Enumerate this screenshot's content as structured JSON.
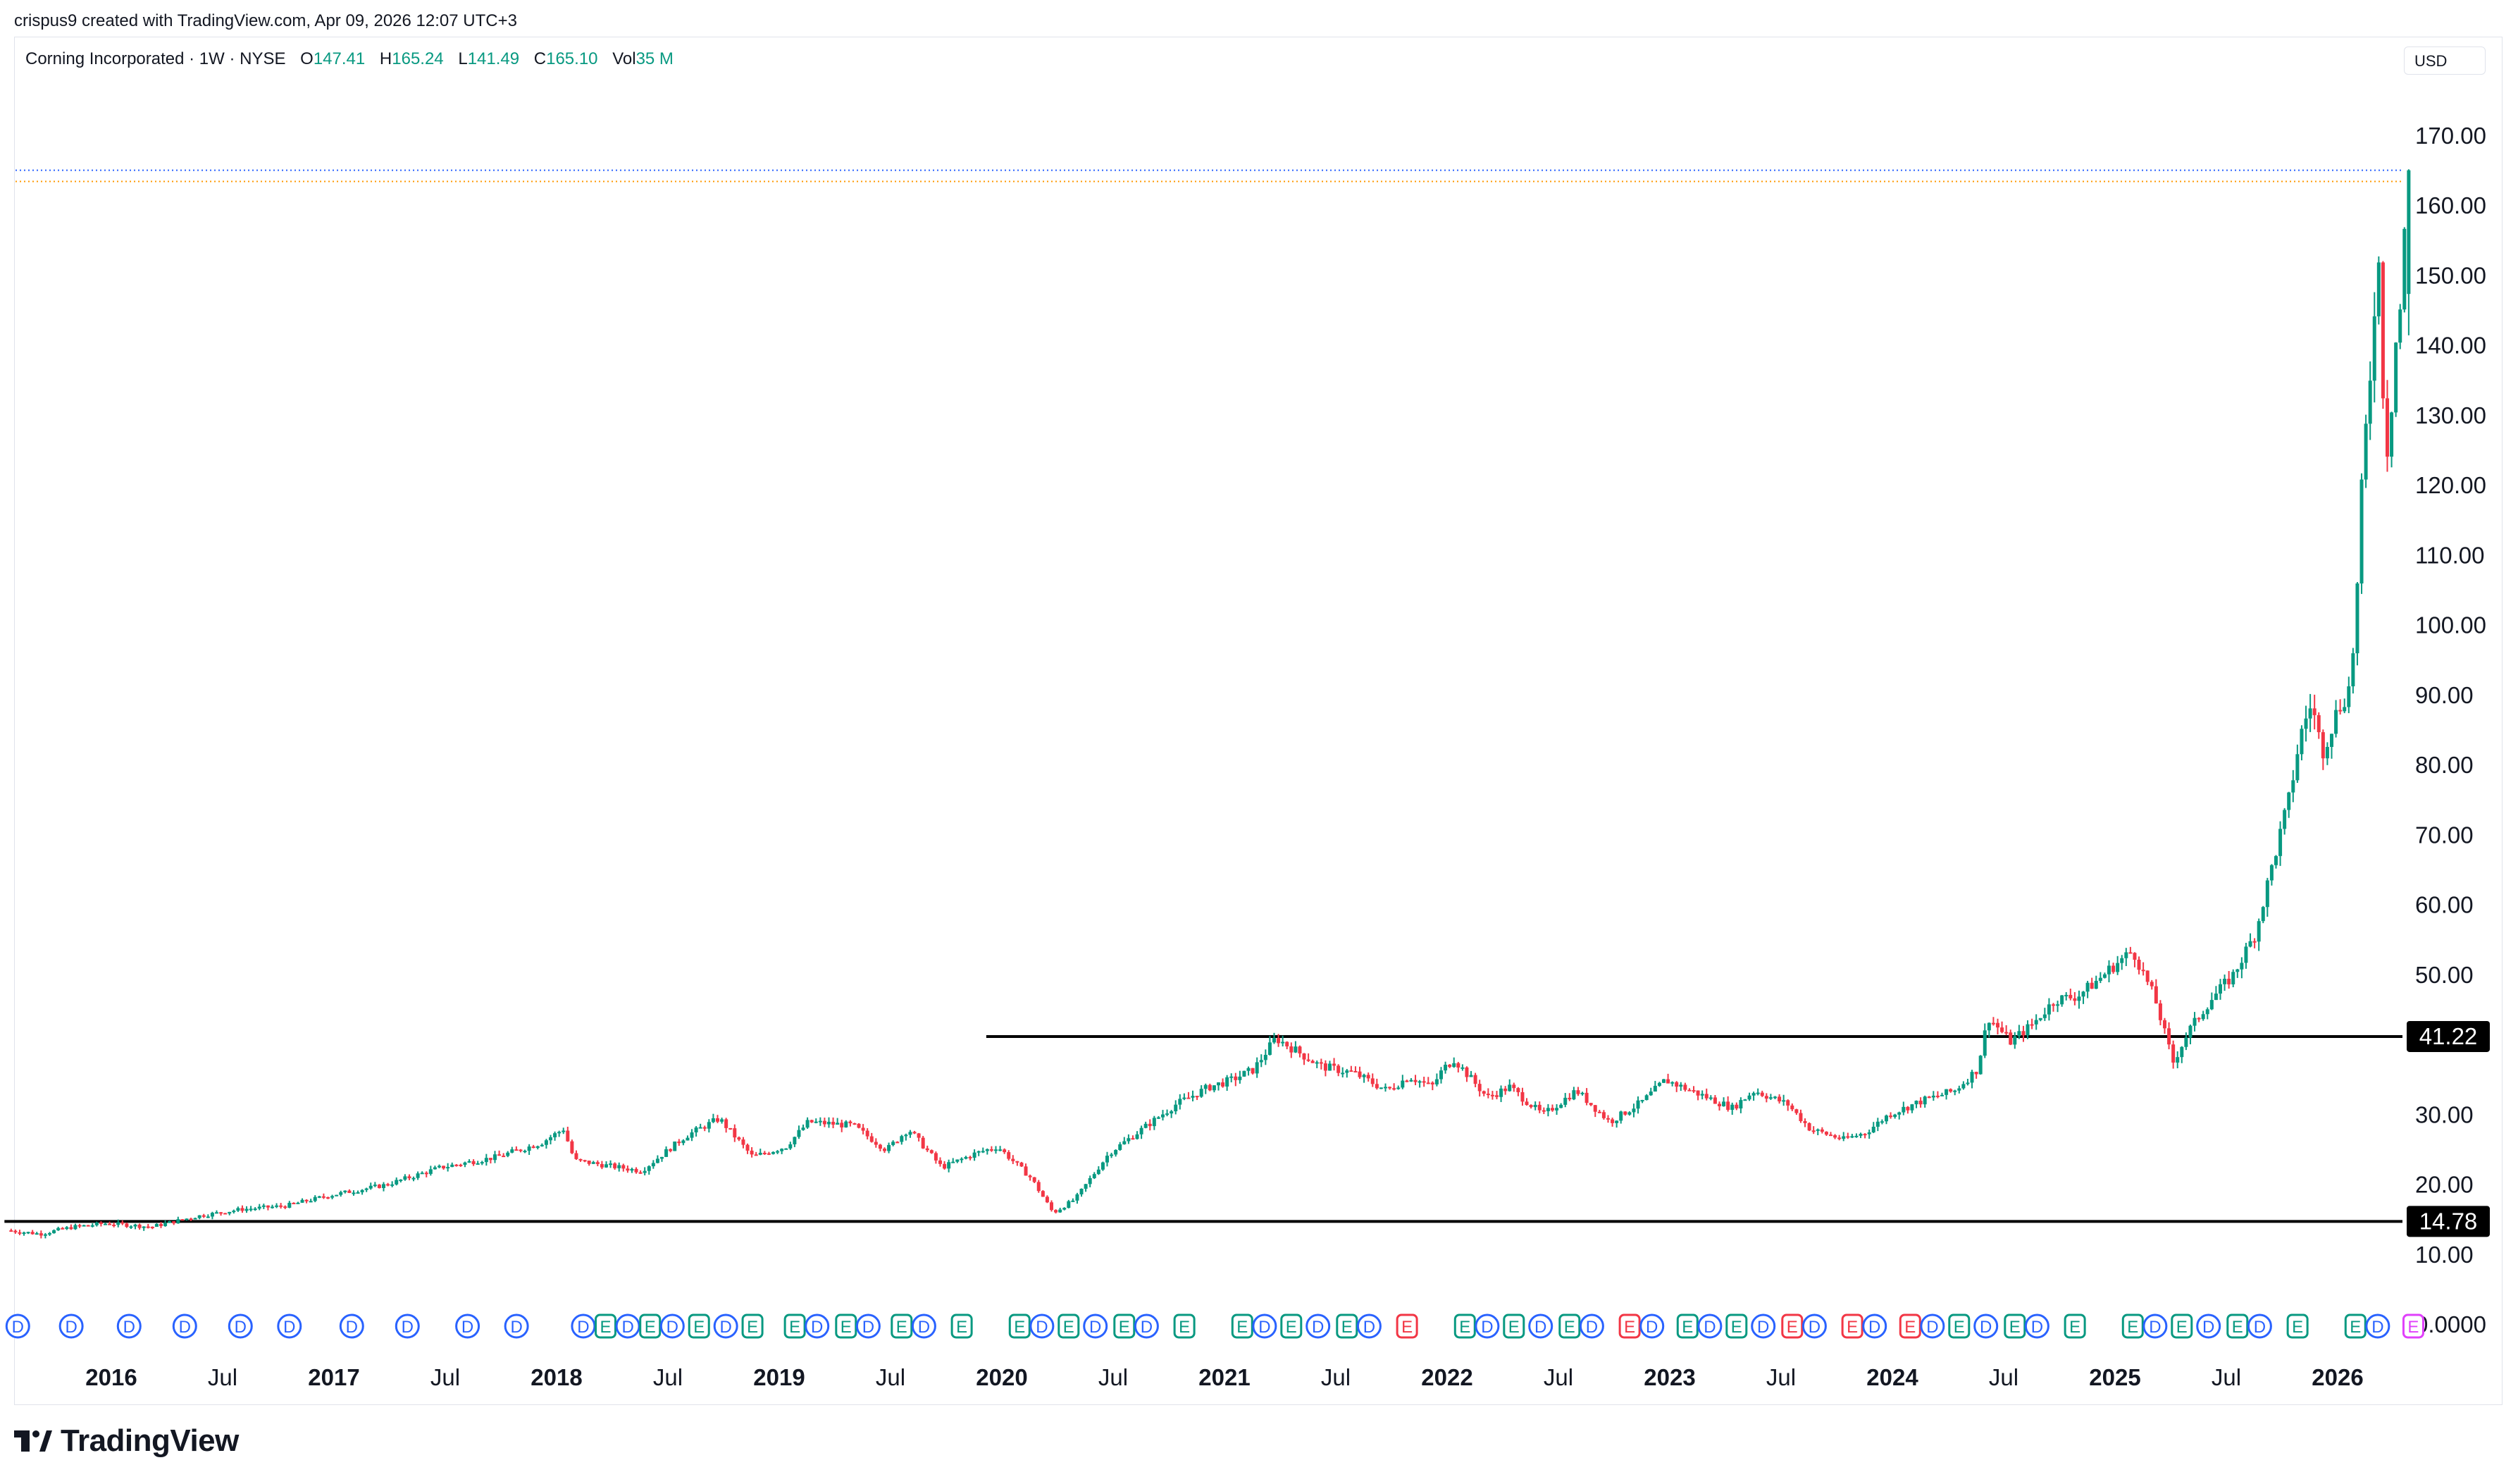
{
  "header": {
    "attribution": "crispus9 created with TradingView.com, Apr 09, 2026 12:07 UTC+3"
  },
  "legend": {
    "symbol": "Corning Incorporated · 1W · NYSE",
    "o_label": "O",
    "o_value": "147.41",
    "h_label": "H",
    "h_value": "165.24",
    "l_label": "L",
    "l_value": "141.49",
    "c_label": "C",
    "c_value": "165.10",
    "vol_label": "Vol",
    "vol_value": "35 M"
  },
  "currency": "USD",
  "brand": {
    "name": "TradingView"
  },
  "colors": {
    "up": "#089981",
    "down": "#f23645",
    "last_blue": "#2962ff",
    "last_orange": "#ff9800",
    "line": "#000000"
  },
  "chart_data": {
    "type": "candlestick",
    "title": "Corning Incorporated · 1W · NYSE",
    "y_ticks": [
      "170.00",
      "160.00",
      "150.00",
      "140.00",
      "130.00",
      "120.00",
      "110.00",
      "100.00",
      "90.00",
      "80.00",
      "70.00",
      "60.00",
      "50.00",
      "30.00",
      "20.00",
      "10.00",
      "0.0000"
    ],
    "ylim": [
      0,
      170
    ],
    "x_ticks": [
      {
        "label": "2016",
        "year": true,
        "t": 2016.0
      },
      {
        "label": "Jul",
        "year": false,
        "t": 2016.5
      },
      {
        "label": "2017",
        "year": true,
        "t": 2017.0
      },
      {
        "label": "Jul",
        "year": false,
        "t": 2017.5
      },
      {
        "label": "2018",
        "year": true,
        "t": 2018.0
      },
      {
        "label": "Jul",
        "year": false,
        "t": 2018.5
      },
      {
        "label": "2019",
        "year": true,
        "t": 2019.0
      },
      {
        "label": "Jul",
        "year": false,
        "t": 2019.5
      },
      {
        "label": "2020",
        "year": true,
        "t": 2020.0
      },
      {
        "label": "Jul",
        "year": false,
        "t": 2020.5
      },
      {
        "label": "2021",
        "year": true,
        "t": 2021.0
      },
      {
        "label": "Jul",
        "year": false,
        "t": 2021.5
      },
      {
        "label": "2022",
        "year": true,
        "t": 2022.0
      },
      {
        "label": "Jul",
        "year": false,
        "t": 2022.5
      },
      {
        "label": "2023",
        "year": true,
        "t": 2023.0
      },
      {
        "label": "Jul",
        "year": false,
        "t": 2023.5
      },
      {
        "label": "2024",
        "year": true,
        "t": 2024.0
      },
      {
        "label": "Jul",
        "year": false,
        "t": 2024.5
      },
      {
        "label": "2025",
        "year": true,
        "t": 2025.0
      },
      {
        "label": "Jul",
        "year": false,
        "t": 2025.5
      },
      {
        "label": "2026",
        "year": true,
        "t": 2026.0
      }
    ],
    "price_path": [
      [
        2015.55,
        13.5
      ],
      [
        2015.7,
        13.0
      ],
      [
        2015.85,
        14.0
      ],
      [
        2016.0,
        14.5
      ],
      [
        2016.2,
        14.0
      ],
      [
        2016.4,
        15.5
      ],
      [
        2016.6,
        16.5
      ],
      [
        2016.8,
        17.0
      ],
      [
        2017.0,
        18.5
      ],
      [
        2017.25,
        20.0
      ],
      [
        2017.5,
        22.5
      ],
      [
        2017.75,
        24.0
      ],
      [
        2017.95,
        26.0
      ],
      [
        2018.05,
        28.0
      ],
      [
        2018.1,
        23.5
      ],
      [
        2018.3,
        22.5
      ],
      [
        2018.4,
        22.0
      ],
      [
        2018.6,
        27.0
      ],
      [
        2018.75,
        29.5
      ],
      [
        2018.9,
        24.0
      ],
      [
        2019.05,
        25.5
      ],
      [
        2019.15,
        29.0
      ],
      [
        2019.35,
        28.5
      ],
      [
        2019.5,
        25.0
      ],
      [
        2019.6,
        28.0
      ],
      [
        2019.75,
        22.5
      ],
      [
        2019.9,
        24.5
      ],
      [
        2020.0,
        25.5
      ],
      [
        2020.05,
        24.0
      ],
      [
        2020.15,
        21.0
      ],
      [
        2020.25,
        16.0
      ],
      [
        2020.35,
        18.0
      ],
      [
        2020.5,
        24.5
      ],
      [
        2020.65,
        28.0
      ],
      [
        2020.8,
        31.5
      ],
      [
        2020.95,
        34.0
      ],
      [
        2021.05,
        35.0
      ],
      [
        2021.15,
        36.5
      ],
      [
        2021.25,
        41.0
      ],
      [
        2021.35,
        39.0
      ],
      [
        2021.45,
        37.0
      ],
      [
        2021.6,
        36.0
      ],
      [
        2021.75,
        33.5
      ],
      [
        2021.85,
        35.5
      ],
      [
        2021.95,
        34.0
      ],
      [
        2022.0,
        36.5
      ],
      [
        2022.05,
        38.0
      ],
      [
        2022.2,
        32.5
      ],
      [
        2022.3,
        34.0
      ],
      [
        2022.45,
        30.0
      ],
      [
        2022.6,
        33.5
      ],
      [
        2022.75,
        29.0
      ],
      [
        2022.9,
        32.0
      ],
      [
        2023.0,
        35.0
      ],
      [
        2023.15,
        33.0
      ],
      [
        2023.3,
        31.0
      ],
      [
        2023.4,
        33.5
      ],
      [
        2023.55,
        31.5
      ],
      [
        2023.65,
        28.0
      ],
      [
        2023.8,
        26.5
      ],
      [
        2023.9,
        27.5
      ],
      [
        2024.0,
        30.0
      ],
      [
        2024.15,
        32.0
      ],
      [
        2024.3,
        33.5
      ],
      [
        2024.4,
        36.5
      ],
      [
        2024.45,
        44.0
      ],
      [
        2024.55,
        40.5
      ],
      [
        2024.65,
        43.0
      ],
      [
        2024.75,
        46.5
      ],
      [
        2024.85,
        47.0
      ],
      [
        2024.95,
        49.5
      ],
      [
        2025.0,
        51.0
      ],
      [
        2025.1,
        53.5
      ],
      [
        2025.2,
        46.5
      ],
      [
        2025.28,
        37.5
      ],
      [
        2025.35,
        42.0
      ],
      [
        2025.45,
        46.5
      ],
      [
        2025.55,
        50.0
      ],
      [
        2025.65,
        56.0
      ],
      [
        2025.72,
        65.0
      ],
      [
        2025.8,
        75.0
      ],
      [
        2025.85,
        84.0
      ],
      [
        2025.9,
        89.0
      ],
      [
        2025.95,
        82.0
      ],
      [
        2026.02,
        88.0
      ],
      [
        2026.07,
        91.0
      ],
      [
        2026.1,
        100.0
      ],
      [
        2026.13,
        121.0
      ],
      [
        2026.17,
        138.0
      ],
      [
        2026.2,
        155.0
      ],
      [
        2026.23,
        128.0
      ],
      [
        2026.25,
        124.0
      ],
      [
        2026.27,
        138.0
      ],
      [
        2026.29,
        143.0
      ],
      [
        2026.31,
        147.4
      ],
      [
        2026.33,
        165.1
      ]
    ],
    "last_ohlc": {
      "open": 147.41,
      "high": 165.24,
      "low": 141.49,
      "close": 165.1
    },
    "last_close": 165.1,
    "prev_close": 163.5,
    "horizontal_lines": [
      {
        "value": 41.22,
        "label": "41.22",
        "from_t": 2019.93
      },
      {
        "value": 14.78,
        "label": "14.78",
        "from_t": 2015.52
      }
    ],
    "event_markers": [
      {
        "t": 2015.58,
        "type": "D"
      },
      {
        "t": 2015.82,
        "type": "D"
      },
      {
        "t": 2016.08,
        "type": "D"
      },
      {
        "t": 2016.33,
        "type": "D"
      },
      {
        "t": 2016.58,
        "type": "D"
      },
      {
        "t": 2016.8,
        "type": "D"
      },
      {
        "t": 2017.08,
        "type": "D"
      },
      {
        "t": 2017.33,
        "type": "D"
      },
      {
        "t": 2017.6,
        "type": "D"
      },
      {
        "t": 2017.82,
        "type": "D"
      },
      {
        "t": 2018.12,
        "type": "D"
      },
      {
        "t": 2018.22,
        "type": "E"
      },
      {
        "t": 2018.32,
        "type": "D"
      },
      {
        "t": 2018.42,
        "type": "E"
      },
      {
        "t": 2018.52,
        "type": "D"
      },
      {
        "t": 2018.64,
        "type": "E"
      },
      {
        "t": 2018.76,
        "type": "D"
      },
      {
        "t": 2018.88,
        "type": "E"
      },
      {
        "t": 2019.07,
        "type": "E"
      },
      {
        "t": 2019.17,
        "type": "D"
      },
      {
        "t": 2019.3,
        "type": "E"
      },
      {
        "t": 2019.4,
        "type": "D"
      },
      {
        "t": 2019.55,
        "type": "E"
      },
      {
        "t": 2019.65,
        "type": "D"
      },
      {
        "t": 2019.82,
        "type": "E"
      },
      {
        "t": 2020.08,
        "type": "E"
      },
      {
        "t": 2020.18,
        "type": "D"
      },
      {
        "t": 2020.3,
        "type": "E"
      },
      {
        "t": 2020.42,
        "type": "D"
      },
      {
        "t": 2020.55,
        "type": "E"
      },
      {
        "t": 2020.65,
        "type": "D"
      },
      {
        "t": 2020.82,
        "type": "E"
      },
      {
        "t": 2021.08,
        "type": "E"
      },
      {
        "t": 2021.18,
        "type": "D"
      },
      {
        "t": 2021.3,
        "type": "E"
      },
      {
        "t": 2021.42,
        "type": "D"
      },
      {
        "t": 2021.55,
        "type": "E"
      },
      {
        "t": 2021.65,
        "type": "D"
      },
      {
        "t": 2021.82,
        "type": "E",
        "neg": true
      },
      {
        "t": 2022.08,
        "type": "E"
      },
      {
        "t": 2022.18,
        "type": "D"
      },
      {
        "t": 2022.3,
        "type": "E"
      },
      {
        "t": 2022.42,
        "type": "D"
      },
      {
        "t": 2022.55,
        "type": "E"
      },
      {
        "t": 2022.65,
        "type": "D"
      },
      {
        "t": 2022.82,
        "type": "E",
        "neg": true
      },
      {
        "t": 2022.92,
        "type": "D"
      },
      {
        "t": 2023.08,
        "type": "E"
      },
      {
        "t": 2023.18,
        "type": "D"
      },
      {
        "t": 2023.3,
        "type": "E"
      },
      {
        "t": 2023.42,
        "type": "D"
      },
      {
        "t": 2023.55,
        "type": "E",
        "neg": true
      },
      {
        "t": 2023.65,
        "type": "D"
      },
      {
        "t": 2023.82,
        "type": "E",
        "neg": true
      },
      {
        "t": 2023.92,
        "type": "D"
      },
      {
        "t": 2024.08,
        "type": "E",
        "neg": true
      },
      {
        "t": 2024.18,
        "type": "D"
      },
      {
        "t": 2024.3,
        "type": "E"
      },
      {
        "t": 2024.42,
        "type": "D"
      },
      {
        "t": 2024.55,
        "type": "E"
      },
      {
        "t": 2024.65,
        "type": "D"
      },
      {
        "t": 2024.82,
        "type": "E"
      },
      {
        "t": 2025.08,
        "type": "E"
      },
      {
        "t": 2025.18,
        "type": "D"
      },
      {
        "t": 2025.3,
        "type": "E"
      },
      {
        "t": 2025.42,
        "type": "D"
      },
      {
        "t": 2025.55,
        "type": "E"
      },
      {
        "t": 2025.65,
        "type": "D"
      },
      {
        "t": 2025.82,
        "type": "E"
      },
      {
        "t": 2026.08,
        "type": "E"
      },
      {
        "t": 2026.18,
        "type": "D"
      },
      {
        "t": 2026.34,
        "type": "E",
        "future": true
      }
    ]
  }
}
